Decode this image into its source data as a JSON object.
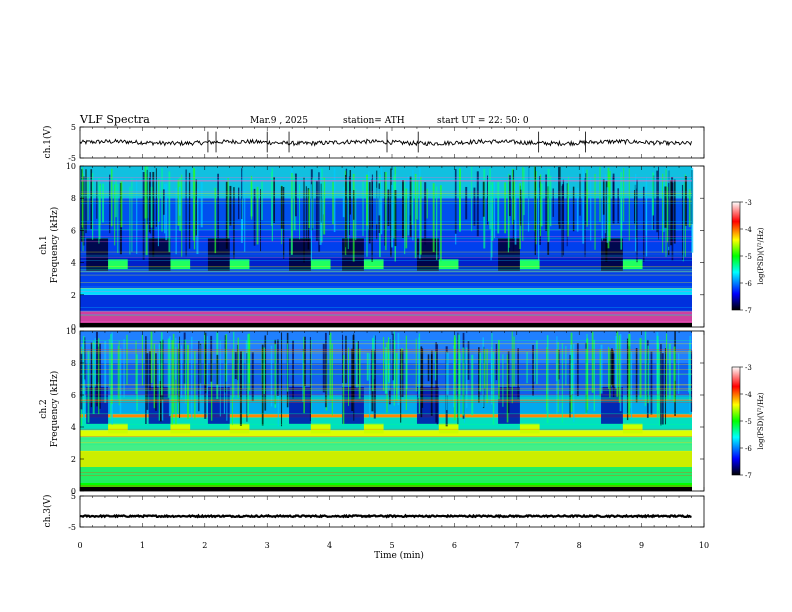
{
  "header": {
    "title": "VLF  Spectra",
    "date": "Mar.9  , 2025",
    "station": "station= ATH",
    "start_ut": "start  UT  =    22: 50: 0"
  },
  "chart_data": [
    {
      "type": "line",
      "name": "ch1-waveform",
      "ylabel": "ch.1(V)",
      "ylim": [
        -5,
        5
      ],
      "yticks": [
        "5",
        "-5"
      ],
      "baseline_v": 0,
      "spike_times_min": [
        2.05,
        2.18,
        3.0,
        3.35,
        4.92,
        5.42,
        7.35,
        8.1
      ]
    },
    {
      "type": "heatmap",
      "name": "ch1-spectrogram",
      "ylabel_line1": "ch.1",
      "ylabel_line2": "Frequency  (kHz)",
      "ylim": [
        0,
        10
      ],
      "yticks": [
        "0",
        "2",
        "4",
        "6",
        "8",
        "10"
      ],
      "burst_windows_min": [
        [
          0.1,
          0.45
        ],
        [
          1.1,
          1.45
        ],
        [
          2.05,
          2.4
        ],
        [
          3.35,
          3.7
        ],
        [
          4.2,
          4.55
        ],
        [
          5.4,
          5.75
        ],
        [
          6.7,
          7.05
        ],
        [
          8.35,
          8.7
        ]
      ],
      "colorbar": {
        "label": "log(PSD)(V²/Hz)",
        "range": [
          -7,
          -3
        ],
        "ticks": [
          "-3",
          "-4",
          "-5",
          "-6",
          "-7"
        ]
      }
    },
    {
      "type": "heatmap",
      "name": "ch2-spectrogram",
      "ylabel_line1": "ch.2",
      "ylabel_line2": "Frequency  (kHz)",
      "ylim": [
        0,
        10
      ],
      "yticks": [
        "0",
        "2",
        "4",
        "6",
        "8",
        "10"
      ],
      "colorbar": {
        "label": "log(PSD)(V²/Hz)",
        "range": [
          -7,
          -3
        ],
        "ticks": [
          "-3",
          "-4",
          "-5",
          "-6",
          "-7"
        ]
      }
    },
    {
      "type": "line",
      "name": "ch3-waveform",
      "ylabel": "ch.3(V)",
      "ylim": [
        -5,
        5
      ],
      "yticks": [
        "5",
        "-5"
      ],
      "baseline_v": -1.5
    }
  ],
  "xaxis": {
    "label": "Time  (min)",
    "range": [
      0,
      10
    ],
    "ticks": [
      "0",
      "1",
      "2",
      "3",
      "4",
      "5",
      "6",
      "7",
      "8",
      "9",
      "10"
    ]
  },
  "colors": {
    "frame": "#000000",
    "colormap": [
      "#ffffff",
      "#ff0000",
      "#ffff00",
      "#00ff00",
      "#00ffff",
      "#0000ff",
      "#000000"
    ]
  }
}
